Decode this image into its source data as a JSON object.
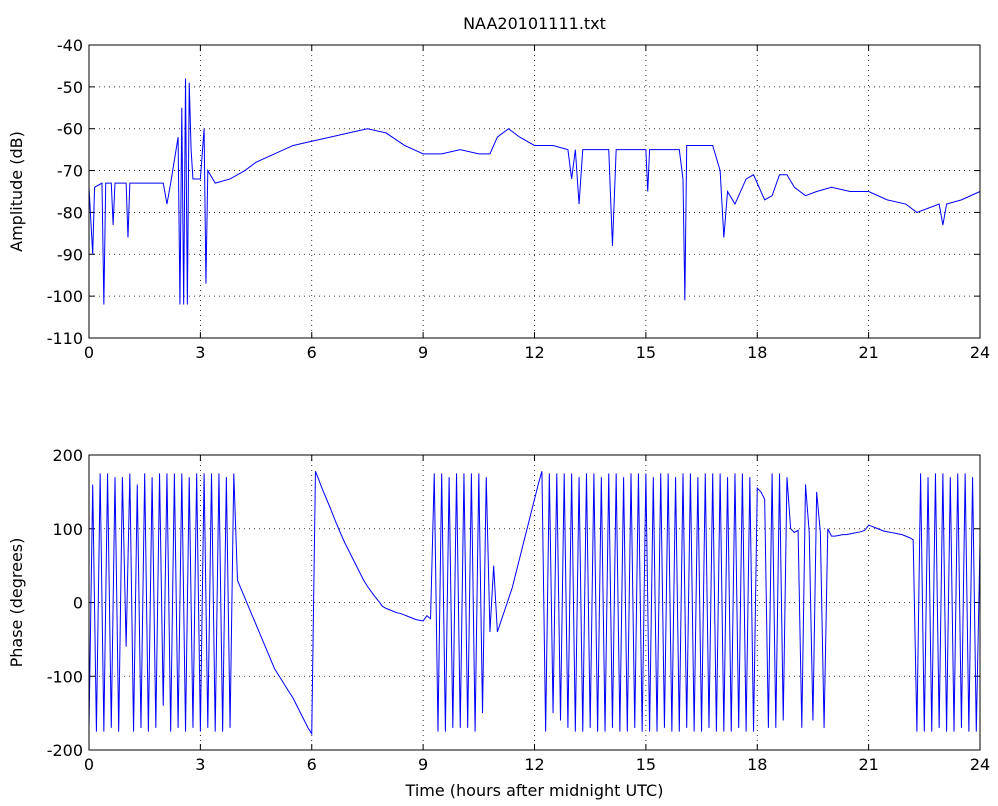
{
  "chart_data": [
    {
      "type": "line",
      "title": "NAA20101111.txt",
      "ylabel": "Amplitude (dB)",
      "color": "#0000ff",
      "grid": true,
      "xlim": [
        0,
        24
      ],
      "xticks": [
        0,
        3,
        6,
        9,
        12,
        15,
        18,
        21,
        24
      ],
      "ylim": [
        -110,
        -40
      ],
      "yticks": [
        -110,
        -100,
        -90,
        -80,
        -70,
        -60,
        -50,
        -40
      ],
      "x": [
        0,
        0.1,
        0.15,
        0.35,
        0.4,
        0.45,
        0.6,
        0.65,
        0.7,
        1.0,
        1.05,
        1.1,
        1.5,
        2.0,
        2.1,
        2.2,
        2.4,
        2.45,
        2.5,
        2.55,
        2.6,
        2.65,
        2.7,
        2.75,
        2.8,
        3.0,
        3.1,
        3.15,
        3.2,
        3.4,
        3.8,
        4.2,
        4.5,
        5.0,
        5.5,
        6.0,
        6.5,
        7.0,
        7.5,
        8.0,
        8.5,
        9.0,
        9.5,
        10.0,
        10.5,
        10.8,
        11.0,
        11.3,
        11.6,
        12.0,
        12.5,
        12.9,
        13.0,
        13.1,
        13.2,
        13.3,
        14.0,
        14.1,
        14.2,
        15.0,
        15.05,
        15.1,
        15.9,
        16.0,
        16.05,
        16.1,
        16.5,
        16.8,
        17.0,
        17.1,
        17.2,
        17.4,
        17.7,
        17.9,
        18.2,
        18.4,
        18.6,
        18.8,
        19.0,
        19.3,
        19.6,
        20.0,
        20.5,
        21.0,
        21.5,
        22.0,
        22.3,
        22.6,
        22.9,
        23.0,
        23.1,
        23.5,
        24.0
      ],
      "values": [
        -74,
        -90,
        -74,
        -73,
        -102,
        -73,
        -73,
        -83,
        -73,
        -73,
        -86,
        -73,
        -73,
        -73,
        -78,
        -73,
        -62,
        -102,
        -55,
        -102,
        -48,
        -102,
        -49,
        -65,
        -72,
        -72,
        -60,
        -97,
        -70,
        -73,
        -72,
        -70,
        -68,
        -66,
        -64,
        -63,
        -62,
        -61,
        -60,
        -61,
        -64,
        -66,
        -66,
        -65,
        -66,
        -66,
        -62,
        -60,
        -62,
        -64,
        -64,
        -65,
        -72,
        -65,
        -78,
        -65,
        -65,
        -88,
        -65,
        -65,
        -75,
        -65,
        -65,
        -72,
        -101,
        -64,
        -64,
        -64,
        -70,
        -86,
        -75,
        -78,
        -72,
        -71,
        -77,
        -76,
        -71,
        -71,
        -74,
        -76,
        -75,
        -74,
        -75,
        -75,
        -77,
        -78,
        -80,
        -79,
        -78,
        -83,
        -78,
        -77,
        -75
      ]
    },
    {
      "type": "line",
      "xlabel": "Time (hours after midnight UTC)",
      "ylabel": "Phase (degrees)",
      "color": "#0000ff",
      "grid": true,
      "xlim": [
        0,
        24
      ],
      "xticks": [
        0,
        3,
        6,
        9,
        12,
        15,
        18,
        21,
        24
      ],
      "ylim": [
        -200,
        200
      ],
      "yticks": [
        -200,
        -100,
        0,
        100,
        200
      ],
      "x": [
        0,
        0.1,
        0.2,
        0.3,
        0.4,
        0.5,
        0.6,
        0.7,
        0.8,
        0.9,
        1.0,
        1.1,
        1.2,
        1.3,
        1.4,
        1.5,
        1.6,
        1.7,
        1.8,
        1.9,
        2.0,
        2.1,
        2.2,
        2.3,
        2.4,
        2.5,
        2.6,
        2.7,
        2.8,
        2.9,
        3.0,
        3.1,
        3.2,
        3.3,
        3.4,
        3.5,
        3.6,
        3.7,
        3.8,
        3.9,
        4.0,
        4.1,
        4.2,
        4.3,
        4.4,
        4.5,
        4.6,
        4.7,
        4.8,
        4.9,
        5.0,
        5.1,
        5.2,
        5.3,
        5.4,
        5.5,
        5.6,
        5.7,
        5.8,
        5.9,
        6.0,
        6.1,
        6.2,
        6.3,
        6.4,
        6.5,
        6.6,
        6.7,
        6.8,
        6.9,
        7.0,
        7.1,
        7.2,
        7.3,
        7.4,
        7.5,
        7.6,
        7.7,
        7.8,
        7.9,
        8.0,
        8.1,
        8.2,
        8.3,
        8.4,
        8.5,
        8.6,
        8.7,
        8.8,
        8.9,
        9.0,
        9.1,
        9.2,
        9.3,
        9.4,
        9.5,
        9.6,
        9.7,
        9.8,
        9.9,
        10.0,
        10.1,
        10.2,
        10.3,
        10.4,
        10.5,
        10.6,
        10.7,
        10.8,
        10.9,
        11.0,
        11.1,
        11.2,
        11.3,
        11.4,
        11.5,
        11.6,
        11.7,
        11.8,
        11.9,
        12.0,
        12.1,
        12.2,
        12.3,
        12.4,
        12.5,
        12.6,
        12.7,
        12.8,
        12.9,
        13.0,
        13.1,
        13.2,
        13.3,
        13.4,
        13.5,
        13.6,
        13.7,
        13.8,
        13.9,
        14.0,
        14.1,
        14.2,
        14.3,
        14.4,
        14.5,
        14.6,
        14.7,
        14.8,
        14.9,
        15.0,
        15.1,
        15.2,
        15.3,
        15.4,
        15.5,
        15.6,
        15.7,
        15.8,
        15.9,
        16.0,
        16.1,
        16.2,
        16.3,
        16.4,
        16.5,
        16.6,
        16.7,
        16.8,
        16.9,
        17.0,
        17.1,
        17.2,
        17.3,
        17.4,
        17.5,
        17.6,
        17.7,
        17.8,
        17.9,
        18.0,
        18.1,
        18.2,
        18.3,
        18.4,
        18.5,
        18.6,
        18.7,
        18.8,
        18.9,
        19.0,
        19.1,
        19.2,
        19.3,
        19.4,
        19.5,
        19.6,
        19.7,
        19.8,
        19.9,
        20.0,
        20.1,
        20.2,
        20.3,
        20.4,
        20.5,
        20.6,
        20.7,
        20.8,
        20.9,
        21.0,
        21.1,
        21.2,
        21.3,
        21.4,
        21.5,
        21.6,
        21.7,
        21.8,
        21.9,
        22.0,
        22.1,
        22.2,
        22.3,
        22.4,
        22.5,
        22.6,
        22.7,
        22.8,
        22.9,
        23.0,
        23.1,
        23.2,
        23.3,
        23.4,
        23.5,
        23.6,
        23.7,
        23.8,
        23.9,
        24.0
      ],
      "values": [
        -170,
        160,
        -175,
        175,
        -175,
        175,
        -170,
        170,
        -175,
        170,
        -60,
        175,
        -175,
        160,
        -170,
        175,
        -175,
        170,
        -170,
        175,
        -140,
        175,
        -175,
        175,
        -170,
        175,
        -175,
        170,
        -170,
        175,
        -175,
        175,
        -170,
        175,
        -175,
        175,
        -175,
        170,
        -170,
        175,
        30,
        18,
        6,
        -6,
        -18,
        -30,
        -42,
        -54,
        -66,
        -78,
        -90,
        -98,
        -106,
        -114,
        -122,
        -130,
        -140,
        -150,
        -160,
        -170,
        -178,
        178,
        165,
        152,
        140,
        128,
        115,
        103,
        91,
        80,
        70,
        60,
        50,
        40,
        30,
        22,
        15,
        8,
        2,
        -5,
        -8,
        -10,
        -12,
        -14,
        -15,
        -17,
        -19,
        -21,
        -23,
        -24,
        -25,
        -18,
        -22,
        175,
        -175,
        175,
        -175,
        170,
        -170,
        175,
        -170,
        175,
        -170,
        175,
        -175,
        175,
        -150,
        170,
        -40,
        50,
        -40,
        -25,
        -10,
        5,
        20,
        40,
        60,
        80,
        100,
        120,
        140,
        160,
        178,
        -175,
        175,
        -150,
        175,
        -160,
        175,
        -170,
        175,
        -175,
        170,
        -175,
        175,
        -170,
        175,
        -175,
        170,
        -175,
        175,
        -170,
        175,
        -175,
        170,
        -175,
        175,
        -170,
        175,
        -175,
        175,
        -175,
        170,
        -175,
        175,
        -170,
        175,
        -175,
        170,
        -175,
        175,
        -170,
        175,
        -175,
        170,
        -175,
        175,
        -170,
        175,
        -175,
        175,
        -175,
        170,
        -175,
        175,
        -170,
        175,
        -175,
        170,
        -175,
        155,
        150,
        140,
        -170,
        175,
        -170,
        175,
        -160,
        170,
        100,
        95,
        98,
        -170,
        160,
        95,
        -160,
        150,
        95,
        -170,
        100,
        90,
        90,
        91,
        92,
        92,
        93,
        94,
        95,
        96,
        98,
        105,
        103,
        101,
        99,
        97,
        96,
        95,
        94,
        93,
        92,
        90,
        88,
        85,
        -175,
        175,
        -175,
        170,
        -175,
        175,
        -170,
        175,
        -175,
        170,
        -175,
        175,
        -170,
        175,
        -175,
        170,
        -175,
        80
      ]
    }
  ]
}
